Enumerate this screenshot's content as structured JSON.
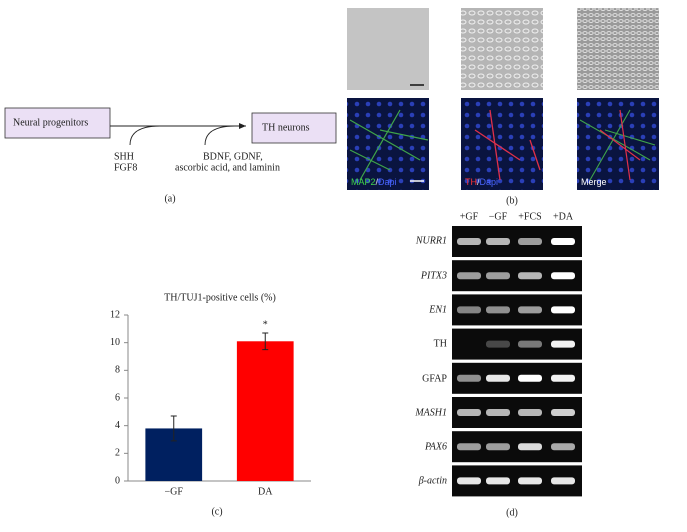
{
  "diagram": {
    "source": "Neural progenitors",
    "target": "TH neurons",
    "factors_1": [
      "SHH",
      "FGF8"
    ],
    "factors_2": [
      "BDNF, GDNF,",
      "ascorbic acid, and laminin"
    ],
    "panel": "(a)"
  },
  "micrographs": {
    "labels": [
      [
        "MAP2",
        "/",
        "Dapi"
      ],
      [
        "TH",
        "/",
        "Dapi"
      ],
      [
        "Merge"
      ]
    ],
    "panel": "(b)"
  },
  "chart_data": {
    "type": "bar",
    "title": "TH/TUJ1-positive cells (%)",
    "categories": [
      "−GF",
      "DA"
    ],
    "values": [
      3.8,
      10.1
    ],
    "errors": [
      0.9,
      0.6
    ],
    "colors": [
      "#002060",
      "#ff0000"
    ],
    "ylim": [
      0,
      12
    ],
    "yticks": [
      0,
      2,
      4,
      6,
      8,
      10,
      12
    ],
    "annotations": [
      "*"
    ],
    "panel": "(c)"
  },
  "gel": {
    "lanes": [
      "+GF",
      "−GF",
      "+FCS",
      "+DA"
    ],
    "rows": [
      "NURR1",
      "PITX3",
      "EN1",
      "TH",
      "GFAP",
      "MASH1",
      "PAX6",
      "β-actin"
    ],
    "panel": "(d)"
  }
}
